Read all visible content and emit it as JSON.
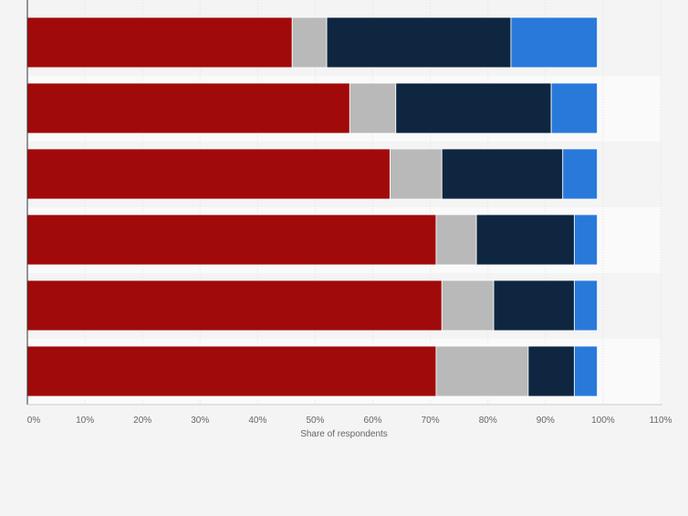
{
  "chart_data": {
    "type": "bar",
    "orientation": "horizontal",
    "stacked": true,
    "categories": [
      "",
      "",
      "",
      "",
      "",
      ""
    ],
    "series": [
      {
        "color": "#a10a0a",
        "values": [
          46,
          56,
          63,
          71,
          72,
          71
        ]
      },
      {
        "color": "#b9b9b9",
        "values": [
          6,
          8,
          9,
          7,
          9,
          16
        ]
      },
      {
        "color": "#0f2640",
        "values": [
          32,
          27,
          21,
          17,
          14,
          8
        ]
      },
      {
        "color": "#2979db",
        "values": [
          15,
          8,
          6,
          4,
          4,
          4
        ]
      }
    ],
    "xlabel": "Share of respondents",
    "xlim": [
      0,
      110
    ],
    "xticks": [
      "0%",
      "10%",
      "20%",
      "30%",
      "40%",
      "50%",
      "60%",
      "70%",
      "80%",
      "90%",
      "100%",
      "110%"
    ],
    "grid": true,
    "legend": "none"
  }
}
